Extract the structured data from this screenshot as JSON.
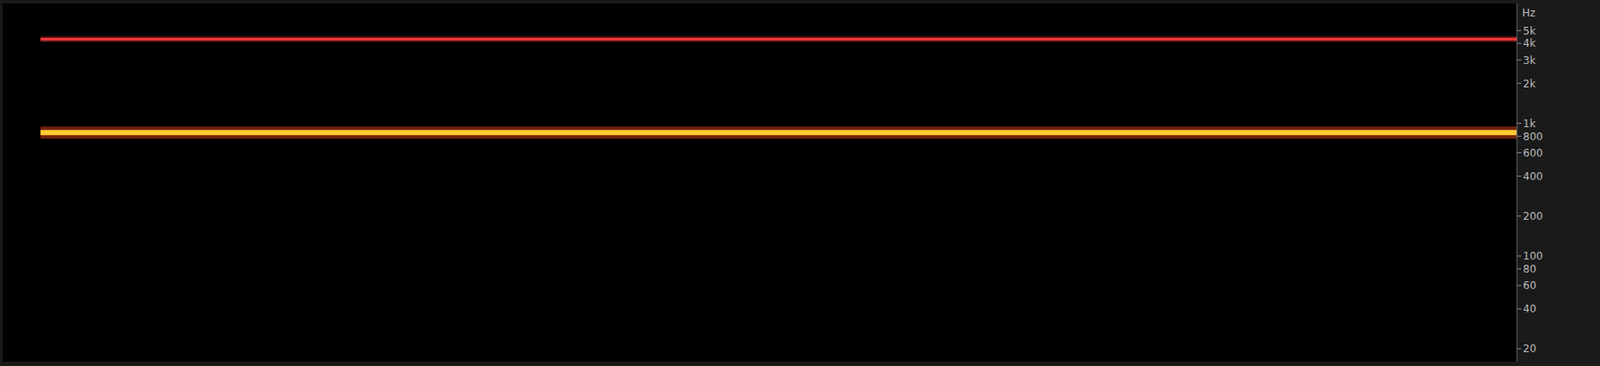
{
  "chart_data": {
    "type": "line",
    "y_label": "Hz",
    "x": [
      1.5,
      60
    ],
    "xlim": [
      0,
      60
    ],
    "ylim": [
      16,
      8000
    ],
    "log": "y",
    "tick_labels": "y",
    "grid": false,
    "yticks": [
      20,
      40,
      60,
      80,
      100,
      200,
      400,
      600,
      800,
      {
        "value": 1000,
        "label": "1k"
      },
      {
        "value": 2000,
        "label": "2k"
      },
      {
        "value": 3000,
        "label": "3k"
      },
      {
        "value": 4000,
        "label": "4k"
      },
      {
        "value": 5000,
        "label": "5k"
      }
    ],
    "series": [
      {
        "color": "#ffcc33",
        "values": [
          850,
          850
        ]
      },
      {
        "color": "#ff3b3b",
        "values": [
          4300,
          4300
        ]
      }
    ]
  }
}
